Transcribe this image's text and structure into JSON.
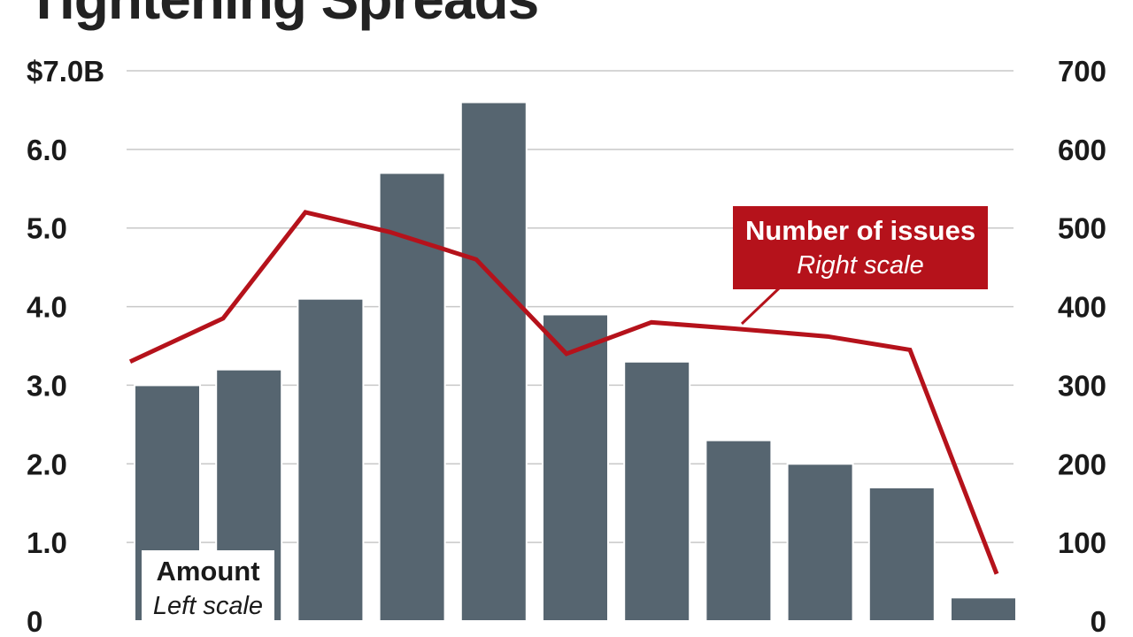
{
  "title": "Tightening Spreads",
  "chart_data": {
    "type": "bar",
    "categories": [
      "",
      "",
      "",
      "",
      "",
      "",
      "",
      "",
      "",
      "",
      ""
    ],
    "series": [
      {
        "name": "Amount",
        "type": "bar",
        "axis": "left",
        "values": [
          3.0,
          3.2,
          4.1,
          5.7,
          6.6,
          3.9,
          3.3,
          2.3,
          2.0,
          1.7,
          0.3
        ],
        "label": "Amount",
        "sublabel": "Left scale",
        "color": "#566570"
      },
      {
        "name": "Number of issues",
        "type": "line",
        "axis": "right",
        "values": [
          330,
          385,
          520,
          495,
          460,
          340,
          380,
          372,
          362,
          345,
          60
        ],
        "label": "Number of issues",
        "sublabel": "Right scale",
        "color": "#b5121b"
      }
    ],
    "left_axis": {
      "ylim": [
        0,
        7
      ],
      "ticks": [
        0,
        1,
        2,
        3,
        4,
        5,
        6,
        7
      ],
      "tick_labels": [
        "0",
        "1.0",
        "2.0",
        "3.0",
        "4.0",
        "5.0",
        "6.0",
        "$7.0B"
      ]
    },
    "right_axis": {
      "ylim": [
        0,
        700
      ],
      "ticks": [
        0,
        100,
        200,
        300,
        400,
        500,
        600,
        700
      ],
      "tick_labels": [
        "0",
        "100",
        "200",
        "300",
        "400",
        "500",
        "600",
        "700"
      ]
    },
    "grid": true,
    "gridColor": "#c8c8c8"
  }
}
